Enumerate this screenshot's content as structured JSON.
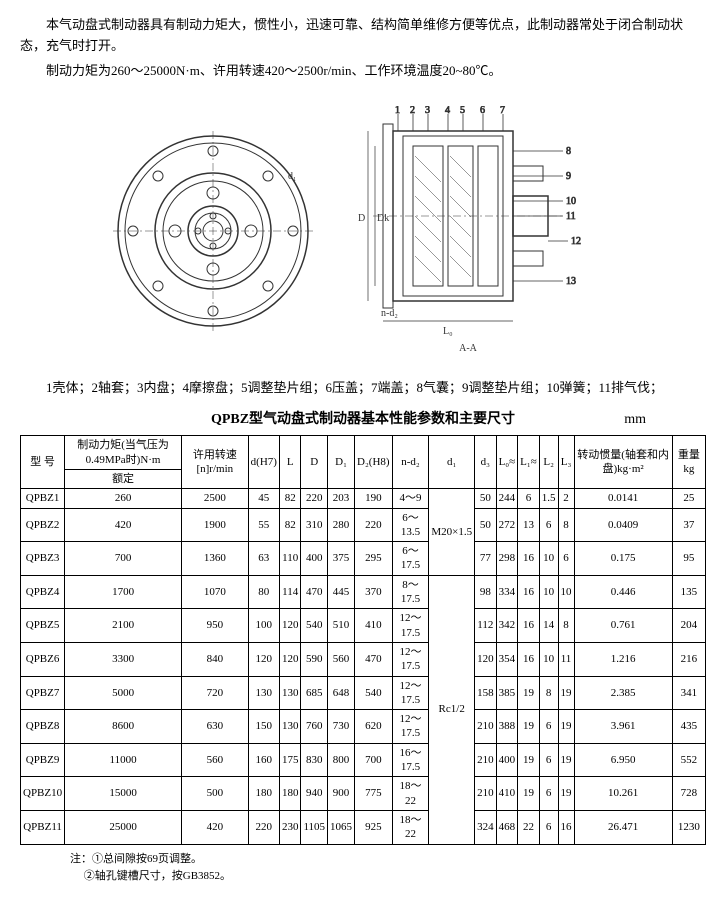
{
  "intro": {
    "p1": "本气动盘式制动器具有制动力矩大，惯性小，迅速可靠、结构简单维修方便等优点，此制动器常处于闭合制动状态，充气时打开。",
    "p2": "制动力矩为260～25000N·m、许用转速420～2500r/min、工作环境温度20~80℃。"
  },
  "diagram": {
    "section_label": "A-A",
    "dim_d1": "d₁",
    "dim_D": "D",
    "dim_Dk": "Dk",
    "dim_L0": "L₀",
    "dim_nd2": "n-d₂"
  },
  "parts_list": "1壳体；2轴套；3内盘；4摩擦盘；5调整垫片组；6压盖；7端盖；8气囊；9调整垫片组；10弹簧；11排气伐；",
  "table": {
    "title": "QPBZ型气动盘式制动器基本性能参数和主要尺寸",
    "unit": "mm",
    "headers": {
      "model": "型 号",
      "torque": "制动力矩(当气压为0.49MPa时)N·m",
      "torque_sub": "额定",
      "speed": "许用转速[n]r/min",
      "d": "d(H7)",
      "L": "L",
      "D": "D",
      "D1": "D₁",
      "D2": "D₂(H8)",
      "nd2": "n-d₂",
      "d1": "d₁",
      "d3": "d₃",
      "L0": "L₀≈",
      "L1": "L₁≈",
      "L2": "L₂",
      "L3": "L₃",
      "inertia": "转动惯量(轴套和内盘)kg·m²",
      "weight": "重量kg"
    },
    "d1_group1": "M20×1.5",
    "d1_group2": "Rc1/2",
    "rows": [
      {
        "model": "QPBZ1",
        "torque": 260,
        "speed": 2500,
        "d": 45,
        "L": 82,
        "D": 220,
        "D1": 203,
        "D2": 190,
        "nd2": "4～9",
        "d3": 50,
        "L0": 244,
        "L1": 6,
        "L2": 1.5,
        "L3": 2,
        "inertia": "0.0141",
        "weight": 25
      },
      {
        "model": "QPBZ2",
        "torque": 420,
        "speed": 1900,
        "d": 55,
        "L": 82,
        "D": 310,
        "D1": 280,
        "D2": 220,
        "nd2": "6～13.5",
        "d3": 50,
        "L0": 272,
        "L1": 13,
        "L2": 6,
        "L3": 8,
        "inertia": "0.0409",
        "weight": 37
      },
      {
        "model": "QPBZ3",
        "torque": 700,
        "speed": 1360,
        "d": 63,
        "L": 110,
        "D": 400,
        "D1": 375,
        "D2": 295,
        "nd2": "6～17.5",
        "d3": 77,
        "L0": 298,
        "L1": 16,
        "L2": 10,
        "L3": 6,
        "inertia": "0.175",
        "weight": 95
      },
      {
        "model": "QPBZ4",
        "torque": 1700,
        "speed": 1070,
        "d": 80,
        "L": 114,
        "D": 470,
        "D1": 445,
        "D2": 370,
        "nd2": "8～17.5",
        "d3": 98,
        "L0": 334,
        "L1": 16,
        "L2": 10,
        "L3": 10,
        "inertia": "0.446",
        "weight": 135
      },
      {
        "model": "QPBZ5",
        "torque": 2100,
        "speed": 950,
        "d": 100,
        "L": 120,
        "D": 540,
        "D1": 510,
        "D2": 410,
        "nd2": "12～17.5",
        "d3": 112,
        "L0": 342,
        "L1": 16,
        "L2": 14,
        "L3": 8,
        "inertia": "0.761",
        "weight": 204
      },
      {
        "model": "QPBZ6",
        "torque": 3300,
        "speed": 840,
        "d": 120,
        "L": 120,
        "D": 590,
        "D1": 560,
        "D2": 470,
        "nd2": "12～17.5",
        "d3": 120,
        "L0": 354,
        "L1": 16,
        "L2": 10,
        "L3": 11,
        "inertia": "1.216",
        "weight": 216
      },
      {
        "model": "QPBZ7",
        "torque": 5000,
        "speed": 720,
        "d": 130,
        "L": 130,
        "D": 685,
        "D1": 648,
        "D2": 540,
        "nd2": "12～17.5",
        "d3": 158,
        "L0": 385,
        "L1": 19,
        "L2": 8,
        "L3": 19,
        "inertia": "2.385",
        "weight": 341
      },
      {
        "model": "QPBZ8",
        "torque": 8600,
        "speed": 630,
        "d": 150,
        "L": 130,
        "D": 760,
        "D1": 730,
        "D2": 620,
        "nd2": "12～17.5",
        "d3": 210,
        "L0": 388,
        "L1": 19,
        "L2": 6,
        "L3": 19,
        "inertia": "3.961",
        "weight": 435
      },
      {
        "model": "QPBZ9",
        "torque": 11000,
        "speed": 560,
        "d": 160,
        "L": 175,
        "D": 830,
        "D1": 800,
        "D2": 700,
        "nd2": "16～17.5",
        "d3": 210,
        "L0": 400,
        "L1": 19,
        "L2": 6,
        "L3": 19,
        "inertia": "6.950",
        "weight": 552
      },
      {
        "model": "QPBZ10",
        "torque": 15000,
        "speed": 500,
        "d": 180,
        "L": 180,
        "D": 940,
        "D1": 900,
        "D2": 775,
        "nd2": "18～22",
        "d3": 210,
        "L0": 410,
        "L1": 19,
        "L2": 6,
        "L3": 19,
        "inertia": "10.261",
        "weight": 728
      },
      {
        "model": "QPBZ11",
        "torque": 25000,
        "speed": 420,
        "d": 220,
        "L": 230,
        "D": 1105,
        "D1": 1065,
        "D2": 925,
        "nd2": "18～22",
        "d3": 324,
        "L0": 468,
        "L1": 22,
        "L2": 6,
        "L3": 16,
        "inertia": "26.471",
        "weight": 1230
      }
    ]
  },
  "footnotes": {
    "label": "注：",
    "n1": "①总间隙按69页调整。",
    "n2": "②轴孔键槽尺寸，按GB3852。"
  }
}
